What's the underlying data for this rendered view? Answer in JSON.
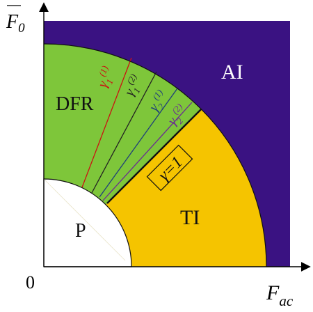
{
  "axes": {
    "y_label": "F",
    "y_label_sub": "0",
    "x_label": "F",
    "x_label_sub": "ac",
    "origin_label": "0"
  },
  "regions": {
    "AI": {
      "label": "AI",
      "color": "#3a1282"
    },
    "DFR": {
      "label": "DFR",
      "color": "#7ec63a"
    },
    "TI": {
      "label": "TI",
      "color": "#f5c400"
    },
    "P": {
      "label": "P",
      "color": "#ffffff"
    }
  },
  "boundary": {
    "label": "γ=1"
  },
  "curves": [
    {
      "base": "γ",
      "sub": "1",
      "sup": "(1)",
      "color": "#cc1111"
    },
    {
      "base": "γ",
      "sub": "1",
      "sup": "(2)",
      "color": "#222222"
    },
    {
      "base": "γ",
      "sub": "2",
      "sup": "(1)",
      "color": "#1f3f7a"
    },
    {
      "base": "γ",
      "sub": "2",
      "sup": "(2)",
      "color": "#6a2c91"
    }
  ]
}
